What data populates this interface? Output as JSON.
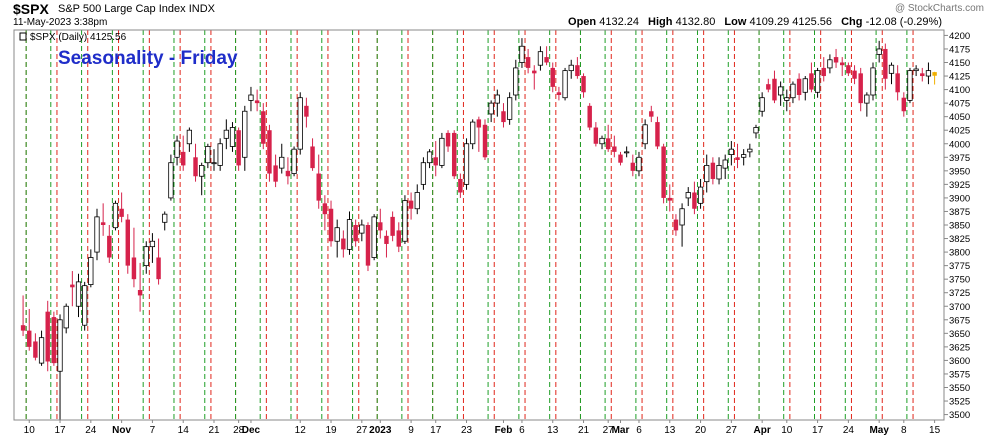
{
  "header": {
    "symbol": "$SPX",
    "name": "S&P 500 Large Cap Index",
    "exchange": "INDX",
    "datetime": "11-May-2023 3:38pm",
    "watermark": "@ StockCharts.com",
    "open_label": "Open",
    "open": "4132.24",
    "high_label": "High",
    "high": "4132.80",
    "low_label": "Low",
    "low": "4109.29",
    "last": "4125.56",
    "chg_label": "Chg",
    "chg": "-12.08 (-0.29%)"
  },
  "chart_data": {
    "type": "candlestick",
    "legend": "$SPX (Daily) 4125.56",
    "annotation": "Seasonality - Friday",
    "ylim": [
      3490,
      4210
    ],
    "yticks": [
      3500,
      3525,
      3550,
      3575,
      3600,
      3625,
      3650,
      3675,
      3700,
      3725,
      3750,
      3775,
      3800,
      3825,
      3850,
      3875,
      3900,
      3925,
      3950,
      3975,
      4000,
      4025,
      4050,
      4075,
      4100,
      4125,
      4150,
      4175,
      4200
    ],
    "x_tick_labels": [
      {
        "i": 1,
        "label": "10",
        "bold": false
      },
      {
        "i": 6,
        "label": "17",
        "bold": false
      },
      {
        "i": 11,
        "label": "24",
        "bold": false
      },
      {
        "i": 16,
        "label": "Nov",
        "bold": true
      },
      {
        "i": 21,
        "label": "7",
        "bold": false
      },
      {
        "i": 26,
        "label": "14",
        "bold": false
      },
      {
        "i": 31,
        "label": "21",
        "bold": false
      },
      {
        "i": 35,
        "label": "28",
        "bold": false
      },
      {
        "i": 37,
        "label": "Dec",
        "bold": true
      },
      {
        "i": 45,
        "label": "12",
        "bold": false
      },
      {
        "i": 50,
        "label": "19",
        "bold": false
      },
      {
        "i": 55,
        "label": "27",
        "bold": false
      },
      {
        "i": 58,
        "label": "2023",
        "bold": true
      },
      {
        "i": 63,
        "label": "9",
        "bold": false
      },
      {
        "i": 67,
        "label": "17",
        "bold": false
      },
      {
        "i": 72,
        "label": "23",
        "bold": false
      },
      {
        "i": 78,
        "label": "Feb",
        "bold": true
      },
      {
        "i": 81,
        "label": "6",
        "bold": false
      },
      {
        "i": 86,
        "label": "13",
        "bold": false
      },
      {
        "i": 91,
        "label": "21",
        "bold": false
      },
      {
        "i": 95,
        "label": "27",
        "bold": false
      },
      {
        "i": 97,
        "label": "Mar",
        "bold": true
      },
      {
        "i": 100,
        "label": "6",
        "bold": false
      },
      {
        "i": 105,
        "label": "13",
        "bold": false
      },
      {
        "i": 110,
        "label": "20",
        "bold": false
      },
      {
        "i": 115,
        "label": "27",
        "bold": false
      },
      {
        "i": 120,
        "label": "Apr",
        "bold": true
      },
      {
        "i": 124,
        "label": "10",
        "bold": false
      },
      {
        "i": 129,
        "label": "17",
        "bold": false
      },
      {
        "i": 134,
        "label": "24",
        "bold": false
      },
      {
        "i": 139,
        "label": "May",
        "bold": true
      },
      {
        "i": 143,
        "label": "8",
        "bold": false
      },
      {
        "i": 148,
        "label": "15",
        "bold": false
      }
    ],
    "fridays": [
      0,
      4,
      9,
      14,
      19,
      24,
      29,
      34,
      38,
      43,
      48,
      53,
      57,
      61,
      66,
      70,
      75,
      80,
      85,
      90,
      94,
      99,
      104,
      109,
      114,
      119,
      123,
      128,
      133,
      138,
      143
    ],
    "monday_lines": [
      1,
      6,
      11,
      16,
      21,
      26,
      31,
      35,
      40,
      45,
      50,
      55,
      58,
      63,
      67,
      72,
      77,
      82,
      87,
      91,
      96,
      101,
      106,
      111,
      116,
      120,
      125,
      130,
      135,
      140,
      145
    ],
    "colors": {
      "up": "#ffffff",
      "up_stroke": "#000000",
      "down": "#d6224b",
      "monday_line": "#e0261b",
      "friday_line": "#1e9e26",
      "annotation": "#1f2dc9",
      "last_bar": "#f0b000"
    },
    "candles": [
      [
        0,
        3665,
        3720,
        3645,
        3655
      ],
      [
        1,
        3655,
        3695,
        3618,
        3625
      ],
      [
        2,
        3635,
        3650,
        3600,
        3605
      ],
      [
        3,
        3595,
        3655,
        3590,
        3642
      ],
      [
        4,
        3690,
        3710,
        3580,
        3598
      ],
      [
        5,
        3680,
        3690,
        3590,
        3595
      ],
      [
        6,
        3580,
        3685,
        3490,
        3675
      ],
      [
        7,
        3660,
        3705,
        3650,
        3700
      ],
      [
        8,
        3740,
        3765,
        3700,
        3735
      ],
      [
        9,
        3700,
        3760,
        3680,
        3745
      ],
      [
        10,
        3665,
        3745,
        3655,
        3738
      ],
      [
        11,
        3740,
        3805,
        3735,
        3790
      ],
      [
        12,
        3800,
        3880,
        3785,
        3865
      ],
      [
        13,
        3855,
        3890,
        3830,
        3850
      ],
      [
        14,
        3830,
        3850,
        3780,
        3790
      ],
      [
        15,
        3845,
        3895,
        3840,
        3890
      ],
      [
        16,
        3880,
        3910,
        3855,
        3865
      ],
      [
        17,
        3860,
        3870,
        3760,
        3775
      ],
      [
        18,
        3790,
        3845,
        3735,
        3750
      ],
      [
        19,
        3730,
        3780,
        3690,
        3720
      ],
      [
        20,
        3775,
        3820,
        3760,
        3810
      ],
      [
        21,
        3810,
        3835,
        3780,
        3820
      ],
      [
        22,
        3790,
        3825,
        3740,
        3750
      ],
      [
        23,
        3855,
        3875,
        3840,
        3870
      ],
      [
        24,
        3900,
        3980,
        3895,
        3965
      ],
      [
        25,
        3975,
        4015,
        3960,
        4005
      ],
      [
        26,
        3985,
        4015,
        3950,
        3960
      ],
      [
        27,
        4000,
        4030,
        3985,
        4025
      ],
      [
        28,
        3975,
        4000,
        3930,
        3940
      ],
      [
        29,
        3940,
        3965,
        3905,
        3960
      ],
      [
        30,
        3965,
        4000,
        3955,
        3995
      ],
      [
        31,
        3965,
        3990,
        3950,
        3965
      ],
      [
        32,
        3960,
        4010,
        3950,
        4000
      ],
      [
        33,
        4010,
        4045,
        3990,
        4025
      ],
      [
        34,
        3995,
        4040,
        3985,
        4030
      ],
      [
        35,
        4025,
        4030,
        3950,
        3960
      ],
      [
        36,
        3975,
        4070,
        3950,
        4060
      ],
      [
        37,
        4080,
        4105,
        4060,
        4090
      ],
      [
        38,
        4080,
        4100,
        4060,
        4075
      ],
      [
        39,
        4060,
        4075,
        3990,
        4000
      ],
      [
        40,
        4025,
        4035,
        3930,
        3945
      ],
      [
        41,
        3960,
        3980,
        3920,
        3930
      ],
      [
        42,
        3955,
        4000,
        3945,
        3975
      ],
      [
        43,
        3950,
        3975,
        3925,
        3940
      ],
      [
        44,
        3945,
        3995,
        3940,
        3990
      ],
      [
        45,
        3990,
        4095,
        3980,
        4085
      ],
      [
        46,
        4070,
        4085,
        4030,
        4050
      ],
      [
        47,
        3995,
        4010,
        3950,
        3955
      ],
      [
        48,
        3945,
        3980,
        3880,
        3895
      ],
      [
        49,
        3890,
        3905,
        3840,
        3870
      ],
      [
        50,
        3880,
        3895,
        3810,
        3820
      ],
      [
        51,
        3820,
        3860,
        3790,
        3845
      ],
      [
        52,
        3825,
        3840,
        3790,
        3805
      ],
      [
        53,
        3805,
        3875,
        3795,
        3860
      ],
      [
        54,
        3850,
        3860,
        3810,
        3820
      ],
      [
        55,
        3835,
        3860,
        3820,
        3850
      ],
      [
        56,
        3850,
        3855,
        3765,
        3775
      ],
      [
        57,
        3790,
        3870,
        3785,
        3865
      ],
      [
        58,
        3855,
        3880,
        3825,
        3840
      ],
      [
        59,
        3830,
        3840,
        3790,
        3815
      ],
      [
        60,
        3865,
        3875,
        3820,
        3830
      ],
      [
        61,
        3840,
        3855,
        3800,
        3810
      ],
      [
        62,
        3820,
        3905,
        3815,
        3895
      ],
      [
        63,
        3895,
        3910,
        3860,
        3880
      ],
      [
        64,
        3880,
        3925,
        3870,
        3910
      ],
      [
        65,
        3925,
        3975,
        3915,
        3965
      ],
      [
        66,
        3965,
        3990,
        3955,
        3985
      ],
      [
        67,
        3975,
        4005,
        3940,
        3960
      ],
      [
        68,
        3960,
        4020,
        3955,
        4010
      ],
      [
        69,
        4020,
        4025,
        3985,
        3995
      ],
      [
        70,
        4020,
        4025,
        3935,
        3940
      ],
      [
        71,
        3935,
        3945,
        3900,
        3910
      ],
      [
        72,
        3925,
        4010,
        3915,
        4000
      ],
      [
        73,
        4000,
        4045,
        3990,
        4040
      ],
      [
        74,
        4045,
        4050,
        3985,
        4030
      ],
      [
        75,
        4035,
        4045,
        3970,
        3975
      ],
      [
        76,
        4055,
        4080,
        4040,
        4075
      ],
      [
        77,
        4075,
        4100,
        4050,
        4090
      ],
      [
        78,
        4060,
        4075,
        4030,
        4040
      ],
      [
        79,
        4045,
        4095,
        4035,
        4085
      ],
      [
        80,
        4090,
        4155,
        4080,
        4140
      ],
      [
        81,
        4150,
        4195,
        4140,
        4180
      ],
      [
        82,
        4160,
        4175,
        4130,
        4140
      ],
      [
        83,
        4135,
        4145,
        4100,
        4130
      ],
      [
        84,
        4145,
        4180,
        4135,
        4170
      ],
      [
        85,
        4160,
        4180,
        4145,
        4150
      ],
      [
        86,
        4140,
        4150,
        4095,
        4105
      ],
      [
        87,
        4095,
        4105,
        4080,
        4090
      ],
      [
        88,
        4085,
        4140,
        4080,
        4135
      ],
      [
        89,
        4135,
        4155,
        4120,
        4145
      ],
      [
        90,
        4145,
        4160,
        4120,
        4125
      ],
      [
        91,
        4125,
        4130,
        4085,
        4095
      ],
      [
        92,
        4070,
        4075,
        4025,
        4030
      ],
      [
        93,
        4030,
        4040,
        3995,
        4000
      ],
      [
        94,
        4000,
        4015,
        3990,
        4010
      ],
      [
        95,
        4010,
        4035,
        3985,
        3990
      ],
      [
        96,
        3995,
        4015,
        3975,
        3985
      ],
      [
        97,
        3980,
        3985,
        3960,
        3965
      ],
      [
        98,
        3985,
        3995,
        3975,
        3985
      ],
      [
        99,
        3965,
        3980,
        3940,
        3950
      ],
      [
        100,
        3950,
        3985,
        3940,
        3975
      ],
      [
        101,
        4000,
        4045,
        3990,
        4035
      ],
      [
        102,
        4060,
        4070,
        4040,
        4050
      ],
      [
        103,
        4040,
        4050,
        3990,
        3995
      ],
      [
        104,
        3995,
        4000,
        3890,
        3900
      ],
      [
        105,
        3900,
        3925,
        3875,
        3895
      ],
      [
        106,
        3860,
        3870,
        3830,
        3840
      ],
      [
        107,
        3850,
        3890,
        3810,
        3880
      ],
      [
        108,
        3900,
        3920,
        3885,
        3910
      ],
      [
        109,
        3910,
        3930,
        3870,
        3880
      ],
      [
        110,
        3890,
        3935,
        3880,
        3920
      ],
      [
        111,
        3930,
        3980,
        3910,
        3960
      ],
      [
        112,
        3965,
        3975,
        3925,
        3935
      ],
      [
        113,
        3935,
        3975,
        3925,
        3960
      ],
      [
        114,
        3955,
        3980,
        3935,
        3970
      ],
      [
        115,
        3980,
        4005,
        3960,
        3990
      ],
      [
        116,
        3975,
        4000,
        3955,
        3970
      ],
      [
        117,
        3975,
        3990,
        3960,
        3980
      ],
      [
        118,
        3985,
        4000,
        3975,
        3990
      ],
      [
        119,
        4020,
        4035,
        4010,
        4030
      ],
      [
        120,
        4060,
        4095,
        4050,
        4085
      ],
      [
        121,
        4110,
        4120,
        4095,
        4100
      ],
      [
        122,
        4120,
        4135,
        4075,
        4080
      ],
      [
        123,
        4090,
        4115,
        4070,
        4105
      ],
      [
        124,
        4080,
        4100,
        4060,
        4085
      ],
      [
        125,
        4085,
        4115,
        4075,
        4110
      ],
      [
        126,
        4120,
        4130,
        4080,
        4090
      ],
      [
        127,
        4095,
        4125,
        4080,
        4120
      ],
      [
        128,
        4130,
        4150,
        4095,
        4100
      ],
      [
        129,
        4095,
        4140,
        4085,
        4135
      ],
      [
        130,
        4140,
        4160,
        4115,
        4125
      ],
      [
        131,
        4140,
        4165,
        4130,
        4155
      ],
      [
        132,
        4160,
        4175,
        4140,
        4150
      ],
      [
        133,
        4150,
        4160,
        4125,
        4145
      ],
      [
        134,
        4145,
        4150,
        4125,
        4130
      ],
      [
        135,
        4135,
        4145,
        4110,
        4120
      ],
      [
        136,
        4130,
        4140,
        4060,
        4075
      ],
      [
        137,
        4075,
        4095,
        4050,
        4090
      ],
      [
        138,
        4090,
        4150,
        4080,
        4140
      ],
      [
        139,
        4165,
        4190,
        4150,
        4175
      ],
      [
        140,
        4175,
        4185,
        4100,
        4120
      ],
      [
        141,
        4130,
        4150,
        4110,
        4145
      ],
      [
        142,
        4130,
        4145,
        4080,
        4095
      ],
      [
        143,
        4085,
        4095,
        4050,
        4060
      ],
      [
        144,
        4080,
        4140,
        4075,
        4135
      ],
      [
        145,
        4135,
        4145,
        4125,
        4138
      ],
      [
        146,
        4130,
        4140,
        4115,
        4125
      ],
      [
        147,
        4125,
        4150,
        4110,
        4135
      ],
      [
        148,
        4132.24,
        4132.8,
        4109.29,
        4125.56
      ]
    ]
  }
}
